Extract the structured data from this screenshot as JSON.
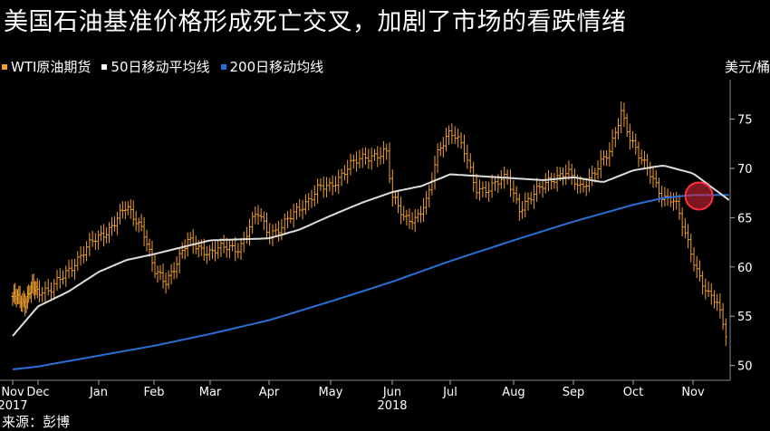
{
  "title": "美国石油基准价格形成死亡交叉，加剧了市场的看跌情绪",
  "legend": [
    {
      "label": "WTI原油期货",
      "color": "#f0a030"
    },
    {
      "label": "50日移动平均线",
      "color": "#ffffff"
    },
    {
      "label": "200日移动均线",
      "color": "#2a6fd6"
    }
  ],
  "unit_label": "美元/桶",
  "source": "来源：彭博",
  "chart_data": {
    "type": "line",
    "ylim": [
      48.5,
      79
    ],
    "y_ticks": [
      50,
      55,
      60,
      65,
      70,
      75
    ],
    "x_tick_labels": [
      {
        "label": "Nov",
        "sub": "2017"
      },
      {
        "label": "Dec",
        "sub": ""
      },
      {
        "label": "Jan",
        "sub": ""
      },
      {
        "label": "Feb",
        "sub": ""
      },
      {
        "label": "Mar",
        "sub": ""
      },
      {
        "label": "Apr",
        "sub": ""
      },
      {
        "label": "May",
        "sub": ""
      },
      {
        "label": "Jun",
        "sub": "2018"
      },
      {
        "label": "Jul",
        "sub": ""
      },
      {
        "label": "Aug",
        "sub": ""
      },
      {
        "label": "Sep",
        "sub": ""
      },
      {
        "label": "Oct",
        "sub": ""
      },
      {
        "label": "Nov",
        "sub": ""
      }
    ],
    "series": [
      {
        "name": "WTI原油期货",
        "kind": "ohlc",
        "color": "#f0a030",
        "keypoints": [
          [
            0,
            57
          ],
          [
            0.5,
            56.5
          ],
          [
            0.8,
            58
          ],
          [
            1.2,
            57.5
          ],
          [
            1.6,
            60.5
          ],
          [
            1.9,
            62.5
          ],
          [
            2.2,
            64
          ],
          [
            2.5,
            66
          ],
          [
            2.8,
            64
          ],
          [
            3.0,
            59.5
          ],
          [
            3.2,
            58.5
          ],
          [
            3.6,
            62.5
          ],
          [
            4.0,
            61.5
          ],
          [
            4.3,
            62
          ],
          [
            4.5,
            62
          ],
          [
            4.8,
            65.5
          ],
          [
            5.0,
            63.5
          ],
          [
            5.2,
            64
          ],
          [
            5.5,
            66
          ],
          [
            5.8,
            68
          ],
          [
            6.0,
            68
          ],
          [
            6.3,
            70.5
          ],
          [
            6.6,
            71
          ],
          [
            6.9,
            72
          ],
          [
            7.0,
            67
          ],
          [
            7.2,
            65
          ],
          [
            7.4,
            65
          ],
          [
            7.6,
            66.5
          ],
          [
            7.8,
            72
          ],
          [
            8.0,
            74
          ],
          [
            8.2,
            72
          ],
          [
            8.4,
            68
          ],
          [
            8.6,
            68
          ],
          [
            8.9,
            69
          ],
          [
            9.1,
            66
          ],
          [
            9.3,
            67
          ],
          [
            9.6,
            69
          ],
          [
            9.9,
            69.5
          ],
          [
            10.1,
            68
          ],
          [
            10.4,
            70
          ],
          [
            10.6,
            71.5
          ],
          [
            10.8,
            76
          ],
          [
            10.95,
            73
          ],
          [
            11.1,
            71
          ],
          [
            11.3,
            69.5
          ],
          [
            11.5,
            67
          ],
          [
            11.7,
            66.5
          ],
          [
            11.9,
            63
          ],
          [
            12.1,
            59
          ],
          [
            12.25,
            57
          ],
          [
            12.4,
            56.5
          ],
          [
            12.55,
            53.5
          ]
        ]
      },
      {
        "name": "50日移动平均线",
        "kind": "line",
        "color": "#dddddd",
        "keypoints": [
          [
            0,
            53
          ],
          [
            0.5,
            54.5
          ],
          [
            1,
            56
          ],
          [
            1.5,
            57.5
          ],
          [
            2,
            59.5
          ],
          [
            2.5,
            60.7
          ],
          [
            3,
            61.3
          ],
          [
            3.5,
            62
          ],
          [
            4,
            62.7
          ],
          [
            4.5,
            62.8
          ],
          [
            5,
            62.9
          ],
          [
            5.5,
            63.8
          ],
          [
            6,
            65.2
          ],
          [
            6.5,
            66.5
          ],
          [
            7,
            67.6
          ],
          [
            7.5,
            68.2
          ],
          [
            8,
            69.4
          ],
          [
            8.5,
            69.2
          ],
          [
            9,
            69
          ],
          [
            9.5,
            68.8
          ],
          [
            10,
            69.1
          ],
          [
            10.5,
            68.6
          ],
          [
            11,
            69.8
          ],
          [
            11.5,
            70.3
          ],
          [
            12,
            69.5
          ],
          [
            12.6,
            66.8
          ]
        ]
      },
      {
        "name": "200日移动均线",
        "kind": "line",
        "color": "#2a6fd6",
        "keypoints": [
          [
            0,
            49.6
          ],
          [
            1,
            49.9
          ],
          [
            2,
            51
          ],
          [
            3,
            52
          ],
          [
            4,
            53.2
          ],
          [
            5,
            54.6
          ],
          [
            6,
            56.5
          ],
          [
            7,
            58.5
          ],
          [
            8,
            60.6
          ],
          [
            9,
            62.7
          ],
          [
            10,
            64.6
          ],
          [
            11,
            66.3
          ],
          [
            11.5,
            67
          ],
          [
            12,
            67.3
          ],
          [
            12.6,
            67.3
          ]
        ]
      }
    ],
    "annotation": {
      "type": "circle",
      "x": 12.1,
      "y": 67.2,
      "label": "death cross"
    }
  }
}
